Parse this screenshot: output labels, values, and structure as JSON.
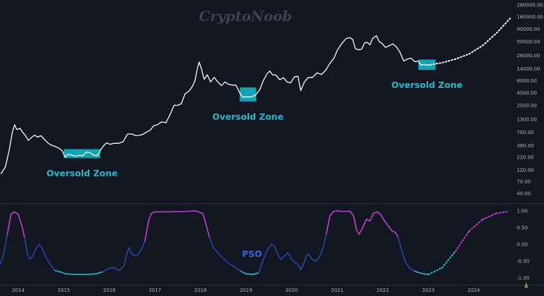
{
  "watermark": "CryptoNoob",
  "colors": {
    "background": "#131722",
    "price_line": "#ffffff",
    "zone_fill": "#14a3b3",
    "zone_text": "#2bb6c9",
    "pso_high": "#c23fd0",
    "pso_mid": "#2747a8",
    "pso_low": "#2bb6c9",
    "axis_text": "#b2b5be"
  },
  "chart_data": [
    {
      "type": "line",
      "name": "price-chart",
      "yscale": "log",
      "ylim": [
        30,
        300000
      ],
      "xlim": [
        2013.6,
        2024.85
      ],
      "y_ticks": [
        "280000.00",
        "160000.00",
        "90000.00",
        "50000.00",
        "26000.00",
        "14000.00",
        "8000.00",
        "4500.00",
        "2500.00",
        "1300.00",
        "700.00",
        "380.00",
        "220.00",
        "120.00",
        "70.00",
        "40.00"
      ],
      "series": [
        {
          "values": [
            [
              2013.62,
              100
            ],
            [
              2013.72,
              140
            ],
            [
              2013.8,
              300
            ],
            [
              2013.87,
              700
            ],
            [
              2013.92,
              1000
            ],
            [
              2013.97,
              800
            ],
            [
              2014.04,
              850
            ],
            [
              2014.1,
              700
            ],
            [
              2014.16,
              600
            ],
            [
              2014.22,
              480
            ],
            [
              2014.3,
              560
            ],
            [
              2014.36,
              620
            ],
            [
              2014.42,
              560
            ],
            [
              2014.5,
              600
            ],
            [
              2014.58,
              500
            ],
            [
              2014.66,
              420
            ],
            [
              2014.74,
              380
            ],
            [
              2014.82,
              360
            ],
            [
              2014.9,
              330
            ],
            [
              2014.96,
              300
            ],
            [
              2015.03,
              220
            ],
            [
              2015.1,
              250
            ],
            [
              2015.18,
              240
            ],
            [
              2015.26,
              230
            ],
            [
              2015.34,
              240
            ],
            [
              2015.42,
              235
            ],
            [
              2015.5,
              280
            ],
            [
              2015.58,
              270
            ],
            [
              2015.66,
              240
            ],
            [
              2015.74,
              235
            ],
            [
              2015.82,
              320
            ],
            [
              2015.88,
              380
            ],
            [
              2015.94,
              430
            ],
            [
              2016.02,
              400
            ],
            [
              2016.1,
              420
            ],
            [
              2016.2,
              420
            ],
            [
              2016.3,
              450
            ],
            [
              2016.4,
              650
            ],
            [
              2016.5,
              650
            ],
            [
              2016.58,
              600
            ],
            [
              2016.66,
              610
            ],
            [
              2016.74,
              640
            ],
            [
              2016.82,
              720
            ],
            [
              2016.9,
              780
            ],
            [
              2016.97,
              960
            ],
            [
              2017.05,
              1000
            ],
            [
              2017.15,
              1150
            ],
            [
              2017.24,
              1100
            ],
            [
              2017.33,
              1600
            ],
            [
              2017.42,
              2500
            ],
            [
              2017.5,
              2500
            ],
            [
              2017.58,
              2700
            ],
            [
              2017.66,
              4300
            ],
            [
              2017.74,
              4800
            ],
            [
              2017.82,
              6000
            ],
            [
              2017.88,
              8000
            ],
            [
              2017.93,
              14000
            ],
            [
              2017.97,
              19000
            ],
            [
              2018.02,
              14000
            ],
            [
              2018.08,
              8500
            ],
            [
              2018.15,
              10500
            ],
            [
              2018.22,
              7500
            ],
            [
              2018.3,
              9300
            ],
            [
              2018.38,
              7500
            ],
            [
              2018.46,
              6300
            ],
            [
              2018.54,
              7500
            ],
            [
              2018.62,
              6700
            ],
            [
              2018.7,
              6500
            ],
            [
              2018.78,
              6400
            ],
            [
              2018.86,
              4500
            ],
            [
              2018.92,
              3700
            ],
            [
              2019.0,
              3700
            ],
            [
              2019.1,
              3700
            ],
            [
              2019.2,
              4000
            ],
            [
              2019.3,
              5200
            ],
            [
              2019.38,
              8000
            ],
            [
              2019.46,
              11000
            ],
            [
              2019.52,
              12500
            ],
            [
              2019.58,
              10500
            ],
            [
              2019.66,
              10300
            ],
            [
              2019.74,
              8300
            ],
            [
              2019.82,
              9200
            ],
            [
              2019.9,
              7500
            ],
            [
              2019.98,
              7200
            ],
            [
              2020.06,
              9500
            ],
            [
              2020.14,
              9800
            ],
            [
              2020.2,
              5000
            ],
            [
              2020.28,
              7500
            ],
            [
              2020.36,
              9200
            ],
            [
              2020.46,
              9300
            ],
            [
              2020.56,
              11500
            ],
            [
              2020.66,
              10700
            ],
            [
              2020.76,
              13500
            ],
            [
              2020.84,
              18000
            ],
            [
              2020.93,
              23000
            ],
            [
              2021.0,
              33000
            ],
            [
              2021.06,
              40000
            ],
            [
              2021.12,
              48000
            ],
            [
              2021.2,
              58000
            ],
            [
              2021.28,
              60000
            ],
            [
              2021.34,
              55000
            ],
            [
              2021.4,
              36000
            ],
            [
              2021.46,
              34000
            ],
            [
              2021.54,
              35000
            ],
            [
              2021.6,
              47000
            ],
            [
              2021.66,
              48000
            ],
            [
              2021.72,
              43000
            ],
            [
              2021.78,
              58000
            ],
            [
              2021.86,
              66000
            ],
            [
              2021.92,
              50000
            ],
            [
              2021.98,
              46000
            ],
            [
              2022.06,
              38000
            ],
            [
              2022.14,
              41000
            ],
            [
              2022.22,
              45000
            ],
            [
              2022.3,
              39000
            ],
            [
              2022.38,
              30000
            ],
            [
              2022.46,
              20000
            ],
            [
              2022.54,
              22000
            ],
            [
              2022.62,
              23000
            ],
            [
              2022.7,
              19500
            ],
            [
              2022.78,
              20000
            ],
            [
              2022.84,
              16500
            ],
            [
              2022.9,
              17000
            ],
            [
              2022.96,
              16500
            ],
            [
              2023.04,
              16800
            ]
          ]
        },
        {
          "name": "projection",
          "dotted": true,
          "values": [
            [
              2023.04,
              16800
            ],
            [
              2023.3,
              18500
            ],
            [
              2023.6,
              22000
            ],
            [
              2023.9,
              28000
            ],
            [
              2024.2,
              42000
            ],
            [
              2024.5,
              75000
            ],
            [
              2024.8,
              150000
            ]
          ]
        }
      ]
    },
    {
      "type": "line",
      "name": "pso-chart",
      "ylim": [
        -1.1,
        1.1
      ],
      "xlim": [
        2013.6,
        2024.85
      ],
      "y_ticks": [
        "1.00",
        "0.50",
        "0.00",
        "-0.50",
        "-1.00"
      ],
      "x_ticks": [
        "2014",
        "2015",
        "2016",
        "2017",
        "2018",
        "2019",
        "2020",
        "2021",
        "2022",
        "2023",
        "2024"
      ],
      "annotation": "PSO",
      "series": [
        {
          "values": [
            [
              2013.6,
              -0.6
            ],
            [
              2013.68,
              -0.3
            ],
            [
              2013.76,
              0.3
            ],
            [
              2013.84,
              0.9
            ],
            [
              2013.92,
              0.97
            ],
            [
              2014.0,
              0.9
            ],
            [
              2014.08,
              0.55
            ],
            [
              2014.14,
              0.2
            ],
            [
              2014.2,
              -0.3
            ],
            [
              2014.26,
              -0.45
            ],
            [
              2014.32,
              -0.35
            ],
            [
              2014.4,
              -0.1
            ],
            [
              2014.46,
              0.0
            ],
            [
              2014.52,
              -0.1
            ],
            [
              2014.6,
              -0.35
            ],
            [
              2014.7,
              -0.6
            ],
            [
              2014.8,
              -0.78
            ],
            [
              2014.92,
              -0.82
            ],
            [
              2015.04,
              -0.88
            ],
            [
              2015.3,
              -0.9
            ],
            [
              2015.5,
              -0.9
            ],
            [
              2015.7,
              -0.88
            ],
            [
              2015.86,
              -0.82
            ],
            [
              2015.98,
              -0.72
            ],
            [
              2016.1,
              -0.7
            ],
            [
              2016.22,
              -0.78
            ],
            [
              2016.32,
              -0.65
            ],
            [
              2016.38,
              -0.3
            ],
            [
              2016.43,
              -0.1
            ],
            [
              2016.5,
              -0.3
            ],
            [
              2016.58,
              -0.35
            ],
            [
              2016.66,
              -0.25
            ],
            [
              2016.72,
              -0.1
            ],
            [
              2016.78,
              0.1
            ],
            [
              2016.86,
              0.7
            ],
            [
              2016.92,
              0.92
            ],
            [
              2017.0,
              0.97
            ],
            [
              2017.3,
              0.97
            ],
            [
              2017.6,
              0.98
            ],
            [
              2017.9,
              1.0
            ],
            [
              2018.05,
              0.92
            ],
            [
              2018.12,
              0.6
            ],
            [
              2018.2,
              0.2
            ],
            [
              2018.28,
              -0.1
            ],
            [
              2018.35,
              -0.2
            ],
            [
              2018.45,
              -0.35
            ],
            [
              2018.55,
              -0.48
            ],
            [
              2018.65,
              -0.6
            ],
            [
              2018.78,
              -0.7
            ],
            [
              2018.88,
              -0.8
            ],
            [
              2019.0,
              -0.88
            ],
            [
              2019.15,
              -0.9
            ],
            [
              2019.28,
              -0.85
            ],
            [
              2019.34,
              -0.6
            ],
            [
              2019.42,
              -0.3
            ],
            [
              2019.5,
              -0.1
            ],
            [
              2019.56,
              0.0
            ],
            [
              2019.62,
              -0.05
            ],
            [
              2019.7,
              -0.3
            ],
            [
              2019.76,
              -0.45
            ],
            [
              2019.84,
              -0.35
            ],
            [
              2019.92,
              -0.25
            ],
            [
              2020.0,
              -0.45
            ],
            [
              2020.08,
              -0.55
            ],
            [
              2020.14,
              -0.6
            ],
            [
              2020.2,
              -0.75
            ],
            [
              2020.26,
              -0.6
            ],
            [
              2020.32,
              -0.35
            ],
            [
              2020.38,
              -0.3
            ],
            [
              2020.45,
              -0.45
            ],
            [
              2020.52,
              -0.5
            ],
            [
              2020.6,
              -0.4
            ],
            [
              2020.68,
              -0.15
            ],
            [
              2020.76,
              0.3
            ],
            [
              2020.84,
              0.85
            ],
            [
              2020.92,
              0.98
            ],
            [
              2021.0,
              1.0
            ],
            [
              2021.15,
              0.98
            ],
            [
              2021.28,
              0.99
            ],
            [
              2021.36,
              0.85
            ],
            [
              2021.42,
              0.45
            ],
            [
              2021.48,
              0.3
            ],
            [
              2021.56,
              0.5
            ],
            [
              2021.64,
              0.75
            ],
            [
              2021.72,
              0.7
            ],
            [
              2021.8,
              0.93
            ],
            [
              2021.88,
              0.97
            ],
            [
              2021.96,
              0.88
            ],
            [
              2022.04,
              0.7
            ],
            [
              2022.12,
              0.55
            ],
            [
              2022.2,
              0.4
            ],
            [
              2022.28,
              0.35
            ],
            [
              2022.34,
              0.2
            ],
            [
              2022.42,
              -0.2
            ],
            [
              2022.5,
              -0.55
            ],
            [
              2022.6,
              -0.72
            ],
            [
              2022.7,
              -0.8
            ],
            [
              2022.8,
              -0.85
            ],
            [
              2022.9,
              -0.88
            ],
            [
              2023.0,
              -0.9
            ]
          ]
        },
        {
          "name": "projection",
          "dotted": true,
          "values": [
            [
              2023.0,
              -0.9
            ],
            [
              2023.3,
              -0.7
            ],
            [
              2023.6,
              -0.2
            ],
            [
              2023.9,
              0.4
            ],
            [
              2024.2,
              0.75
            ],
            [
              2024.5,
              0.93
            ],
            [
              2024.75,
              0.98
            ]
          ]
        }
      ]
    }
  ],
  "zones": [
    {
      "label": "Oversold Zone",
      "x0": 2015.0,
      "x1": 2015.8,
      "y0": 210,
      "y1": 320
    },
    {
      "label": "Oversold Zone",
      "x0": 2018.86,
      "x1": 2019.22,
      "y0": 3000,
      "y1": 5800
    },
    {
      "label": "Oversold Zone",
      "x0": 2022.78,
      "x1": 2023.16,
      "y0": 13200,
      "y1": 21500
    }
  ]
}
